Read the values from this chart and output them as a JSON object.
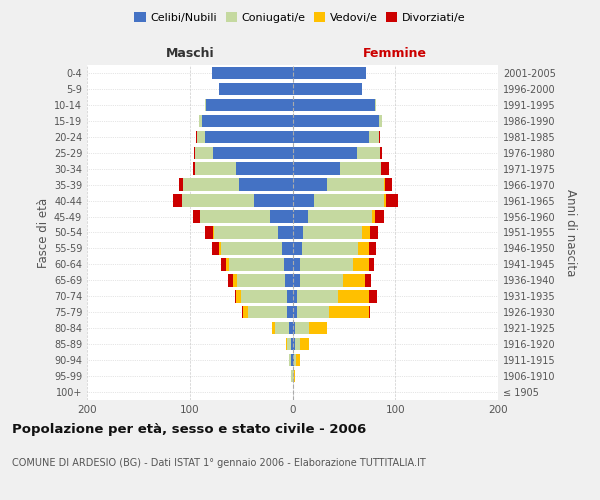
{
  "age_groups": [
    "100+",
    "95-99",
    "90-94",
    "85-89",
    "80-84",
    "75-79",
    "70-74",
    "65-69",
    "60-64",
    "55-59",
    "50-54",
    "45-49",
    "40-44",
    "35-39",
    "30-34",
    "25-29",
    "20-24",
    "15-19",
    "10-14",
    "5-9",
    "0-4"
  ],
  "birth_years": [
    "≤ 1905",
    "1906-1910",
    "1911-1915",
    "1916-1920",
    "1921-1925",
    "1926-1930",
    "1931-1935",
    "1936-1940",
    "1941-1945",
    "1946-1950",
    "1951-1955",
    "1956-1960",
    "1961-1965",
    "1966-1970",
    "1971-1975",
    "1976-1980",
    "1981-1985",
    "1986-1990",
    "1991-1995",
    "1996-2000",
    "2001-2005"
  ],
  "maschi": {
    "celibi": [
      0,
      0,
      1,
      1,
      3,
      5,
      5,
      7,
      8,
      10,
      14,
      22,
      37,
      52,
      55,
      77,
      85,
      88,
      84,
      72,
      78
    ],
    "coniugati": [
      0,
      1,
      2,
      4,
      14,
      38,
      45,
      47,
      54,
      60,
      62,
      68,
      71,
      55,
      40,
      18,
      8,
      3,
      1,
      0,
      0
    ],
    "vedovi": [
      0,
      0,
      0,
      1,
      3,
      5,
      5,
      4,
      3,
      2,
      1,
      0,
      0,
      0,
      0,
      0,
      0,
      0,
      0,
      0,
      0
    ],
    "divorziati": [
      0,
      0,
      0,
      0,
      0,
      1,
      1,
      5,
      5,
      6,
      8,
      7,
      8,
      3,
      2,
      1,
      1,
      0,
      0,
      0,
      0
    ]
  },
  "femmine": {
    "nubili": [
      0,
      0,
      1,
      2,
      2,
      4,
      4,
      7,
      7,
      9,
      10,
      15,
      21,
      34,
      46,
      63,
      74,
      84,
      80,
      68,
      72
    ],
    "coniugate": [
      0,
      1,
      2,
      5,
      14,
      32,
      40,
      42,
      52,
      55,
      58,
      62,
      68,
      55,
      40,
      22,
      10,
      3,
      1,
      0,
      0
    ],
    "vedove": [
      0,
      1,
      4,
      9,
      18,
      38,
      30,
      22,
      15,
      10,
      7,
      3,
      2,
      1,
      0,
      0,
      0,
      0,
      0,
      0,
      0
    ],
    "divorziate": [
      0,
      0,
      0,
      0,
      0,
      1,
      8,
      5,
      5,
      7,
      8,
      9,
      12,
      7,
      8,
      2,
      1,
      0,
      0,
      0,
      0
    ]
  },
  "colors": {
    "celibi": "#4472c4",
    "coniugati": "#c5d9a0",
    "vedovi": "#ffc000",
    "divorziati": "#cc0000"
  },
  "xlim": 200,
  "title": "Popolazione per età, sesso e stato civile - 2006",
  "subtitle": "COMUNE DI ARDESIO (BG) - Dati ISTAT 1° gennaio 2006 - Elaborazione TUTTITALIA.IT",
  "ylabel_left": "Fasce di età",
  "ylabel_right": "Anni di nascita",
  "xlabel_left": "Maschi",
  "xlabel_right": "Femmine",
  "bg_color": "#f0f0f0",
  "plot_bg": "#ffffff"
}
